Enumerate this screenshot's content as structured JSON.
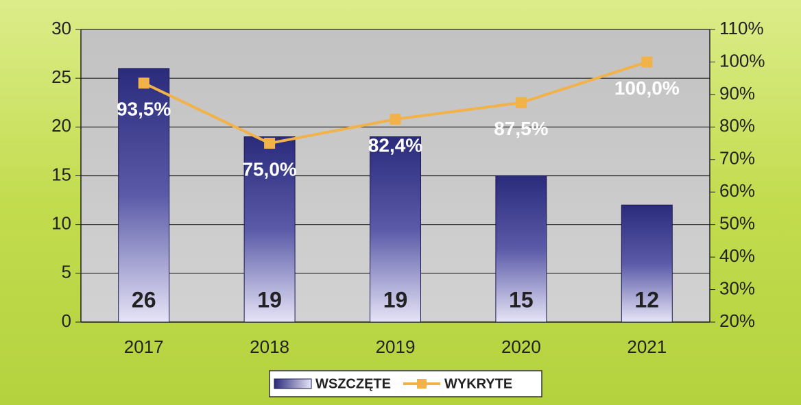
{
  "chart_data": {
    "type": "bar",
    "categories": [
      "2017",
      "2018",
      "2019",
      "2020",
      "2021"
    ],
    "series": [
      {
        "name": "WSZCZĘTE",
        "color": "#2b2b7c",
        "values": [
          26,
          19,
          19,
          15,
          12
        ]
      },
      {
        "name": "WYKRYTE",
        "color": "#f2b24a",
        "type": "line",
        "axis": "y2",
        "values": [
          93.5,
          75.0,
          82.4,
          87.5,
          100.0
        ],
        "value_labels": [
          "93,5%",
          "75,0%",
          "82,4%",
          "87,5%",
          "100,0%"
        ]
      }
    ],
    "ylim": [
      0,
      30
    ],
    "yticks": [
      0,
      5,
      10,
      15,
      20,
      25,
      30
    ],
    "y2lim": [
      20,
      110
    ],
    "y2ticks": [
      {
        "value": 20,
        "label": "20%"
      },
      {
        "value": 30,
        "label": "30%"
      },
      {
        "value": 40,
        "label": "40%"
      },
      {
        "value": 50,
        "label": "50%"
      },
      {
        "value": 60,
        "label": "60%"
      },
      {
        "value": 70,
        "label": "70%"
      },
      {
        "value": 80,
        "label": "80%"
      },
      {
        "value": 90,
        "label": "90%"
      },
      {
        "value": 100,
        "label": "100%"
      },
      {
        "value": 110,
        "label": "110%"
      }
    ],
    "grid": true,
    "legend": "bottom"
  }
}
